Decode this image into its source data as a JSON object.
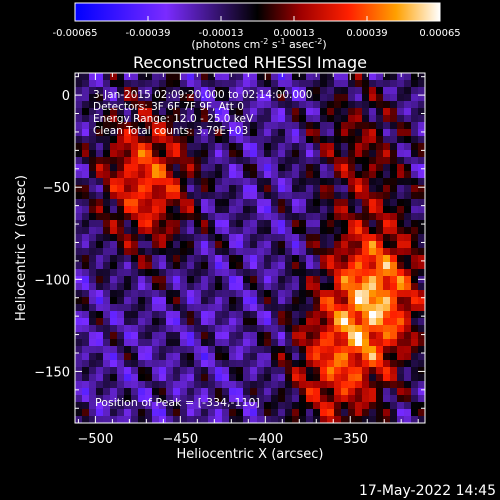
{
  "chart_data": {
    "type": "heatmap",
    "title": "Reconstructed RHESSI Image",
    "xlabel": "Heliocentric X (arcsec)",
    "ylabel": "Heliocentric Y (arcsec)",
    "xlim": [
      -512,
      -306
    ],
    "ylim": [
      -178,
      12
    ],
    "xticks": [
      -500,
      -450,
      -400,
      -350
    ],
    "yticks": [
      0,
      -50,
      -100,
      -150
    ],
    "colorbar": {
      "ticks": [
        "-0.00065",
        "-0.00039",
        "-0.00013",
        "0.00013",
        "0.00039",
        "0.00065"
      ],
      "range": [
        -0.00065,
        0.00065
      ],
      "unit_prefix": "(photons cm",
      "unit_sup1": "-2",
      "unit_mid": " s",
      "unit_sup2": "-1",
      "unit_mid2": " asec",
      "unit_sup3": "-2",
      "unit_suffix": ")"
    },
    "annotations": [
      "3-Jan-2015 02:09:20.000 to 02:14:00.000",
      "Detectors: 3F 6F 7F 9F, Att 0",
      "Energy Range: 12.0 - 25.0 keV",
      "Clean     Total counts: 3.79E+03"
    ],
    "peak_label": "Position of Peak = [-334,-110]",
    "peak": [
      -334,
      -110
    ],
    "sources": [
      {
        "x": -335,
        "y": -108,
        "amplitude": 0.00062
      },
      {
        "x": -470,
        "y": -45,
        "amplitude": 0.0005
      },
      {
        "x": -360,
        "y": -150,
        "amplitude": 0.0004
      },
      {
        "x": -345,
        "y": -30,
        "amplitude": 0.00025
      }
    ]
  },
  "footer": {
    "date": "17-May-2022 14:45"
  }
}
